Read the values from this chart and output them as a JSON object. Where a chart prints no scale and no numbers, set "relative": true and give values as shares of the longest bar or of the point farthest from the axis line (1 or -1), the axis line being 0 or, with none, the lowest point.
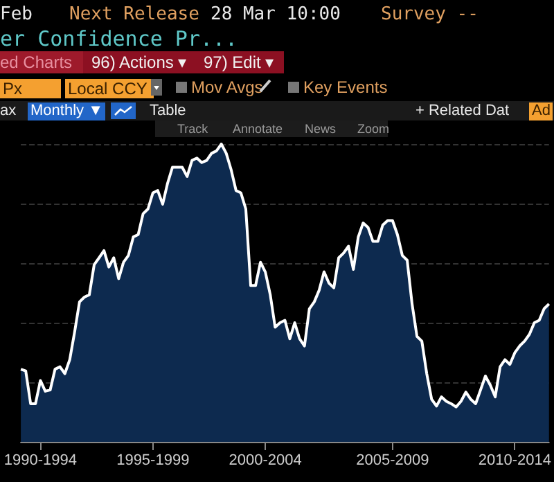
{
  "chart_data": {
    "type": "area",
    "title": "er Confidence Pr...",
    "relative": true,
    "grid": "y",
    "marker": "none",
    "annotations": [
      "Feb",
      "Next Release",
      "28 Mar 10:00",
      "Survey --",
      "ed Charts",
      "96) Actions ▾",
      "97) Edit ▾",
      "Px",
      "Local CCY",
      "Mov Avgs",
      "Key Events",
      "ax",
      "Monthly ▼",
      "Table",
      "+ Related Dat",
      "Ad",
      "Track",
      "Annotate",
      "News",
      "Zoom"
    ],
    "categories": [
      null,
      null,
      null,
      null,
      "1990-1994",
      null,
      null,
      null,
      null,
      null,
      null,
      null,
      null,
      null,
      null,
      null,
      null,
      null,
      null,
      null,
      null,
      null,
      null,
      null,
      null,
      null,
      null,
      "1995-1999",
      null,
      null,
      null,
      null,
      null,
      null,
      null,
      null,
      null,
      null,
      null,
      null,
      null,
      null,
      null,
      null,
      null,
      null,
      null,
      null,
      null,
      null,
      "2000-2004",
      null,
      null,
      null,
      null,
      null,
      null,
      null,
      null,
      null,
      null,
      null,
      null,
      null,
      null,
      null,
      null,
      null,
      null,
      null,
      null,
      null,
      null,
      null,
      null,
      null,
      "2005-2009",
      null,
      null,
      null,
      null,
      null,
      null,
      null,
      null,
      null,
      null,
      null,
      null,
      null,
      null,
      null,
      null,
      null,
      null,
      null,
      null,
      null,
      null,
      null,
      null,
      "2010-2014",
      null,
      null,
      null,
      null,
      null,
      null,
      null
    ],
    "series": [
      {
        "color": "#0d2a4f",
        "values": [
          0.244,
          0.238,
          0.128,
          0.128,
          0.206,
          0.17,
          0.174,
          0.244,
          0.252,
          0.229,
          0.276,
          0.369,
          0.47,
          0.486,
          0.494,
          0.595,
          0.618,
          0.642,
          0.587,
          0.618,
          0.548,
          0.603,
          0.626,
          0.688,
          0.696,
          0.766,
          0.782,
          0.836,
          0.844,
          0.798,
          0.868,
          0.922,
          0.922,
          0.922,
          0.891,
          0.945,
          0.953,
          0.938,
          0.945,
          0.969,
          0.977,
          1.0,
          0.969,
          0.914,
          0.844,
          0.836,
          0.782,
          0.525,
          0.525,
          0.603,
          0.57,
          0.494,
          0.385,
          0.4,
          0.408,
          0.346,
          0.4,
          0.346,
          0.322,
          0.447,
          0.47,
          0.509,
          0.571,
          0.533,
          0.517,
          0.618,
          0.634,
          0.657,
          0.579,
          0.688,
          0.735,
          0.72,
          0.673,
          0.673,
          0.728,
          0.743,
          0.743,
          0.696,
          0.626,
          0.61,
          0.463,
          0.354,
          0.338,
          0.229,
          0.143,
          0.12,
          0.151,
          0.136,
          0.128,
          0.117,
          0.136,
          0.167,
          0.143,
          0.128,
          0.174,
          0.221,
          0.19,
          0.151,
          0.252,
          0.276,
          0.26,
          0.299,
          0.322,
          0.338,
          0.361,
          0.4,
          0.408,
          0.447,
          0.463
        ]
      }
    ]
  }
}
